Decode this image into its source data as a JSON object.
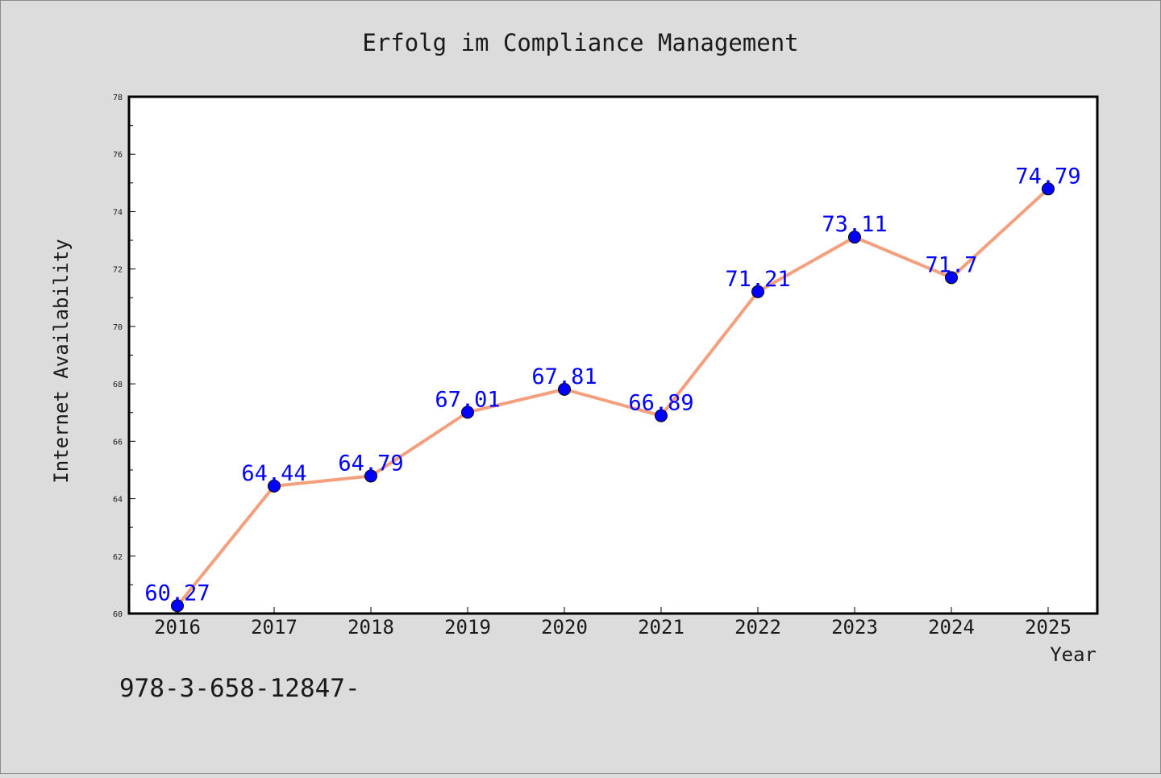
{
  "chart_data": {
    "type": "line",
    "title": "Erfolg im Compliance Management",
    "xlabel": "Year",
    "ylabel": "Internet Availability",
    "categories": [
      "2016",
      "2017",
      "2018",
      "2019",
      "2020",
      "2021",
      "2022",
      "2023",
      "2024",
      "2025"
    ],
    "series": [
      {
        "values": [
          60.27,
          64.44,
          64.79,
          67.01,
          67.81,
          66.89,
          71.21,
          73.11,
          71.7,
          74.79
        ],
        "labels": [
          "60.27",
          "64.44",
          "64.79",
          "67.01",
          "67.81",
          "66.89",
          "71.21",
          "73.11",
          "71.7",
          "74.79"
        ],
        "line_color": "#f4a07e",
        "marker_color": "#0000ff",
        "label_color": "#0000ff"
      }
    ],
    "ylim": [
      60,
      78
    ],
    "yticks": [
      60,
      62,
      64,
      66,
      68,
      70,
      72,
      74,
      76,
      78
    ],
    "grid": false,
    "legend": false
  },
  "footer_text": "978-3-658-12847-",
  "colors": {
    "background": "#dcdcdc",
    "plot_background": "#ffffff",
    "axis": "#000000",
    "text": "#1a1a1a"
  }
}
